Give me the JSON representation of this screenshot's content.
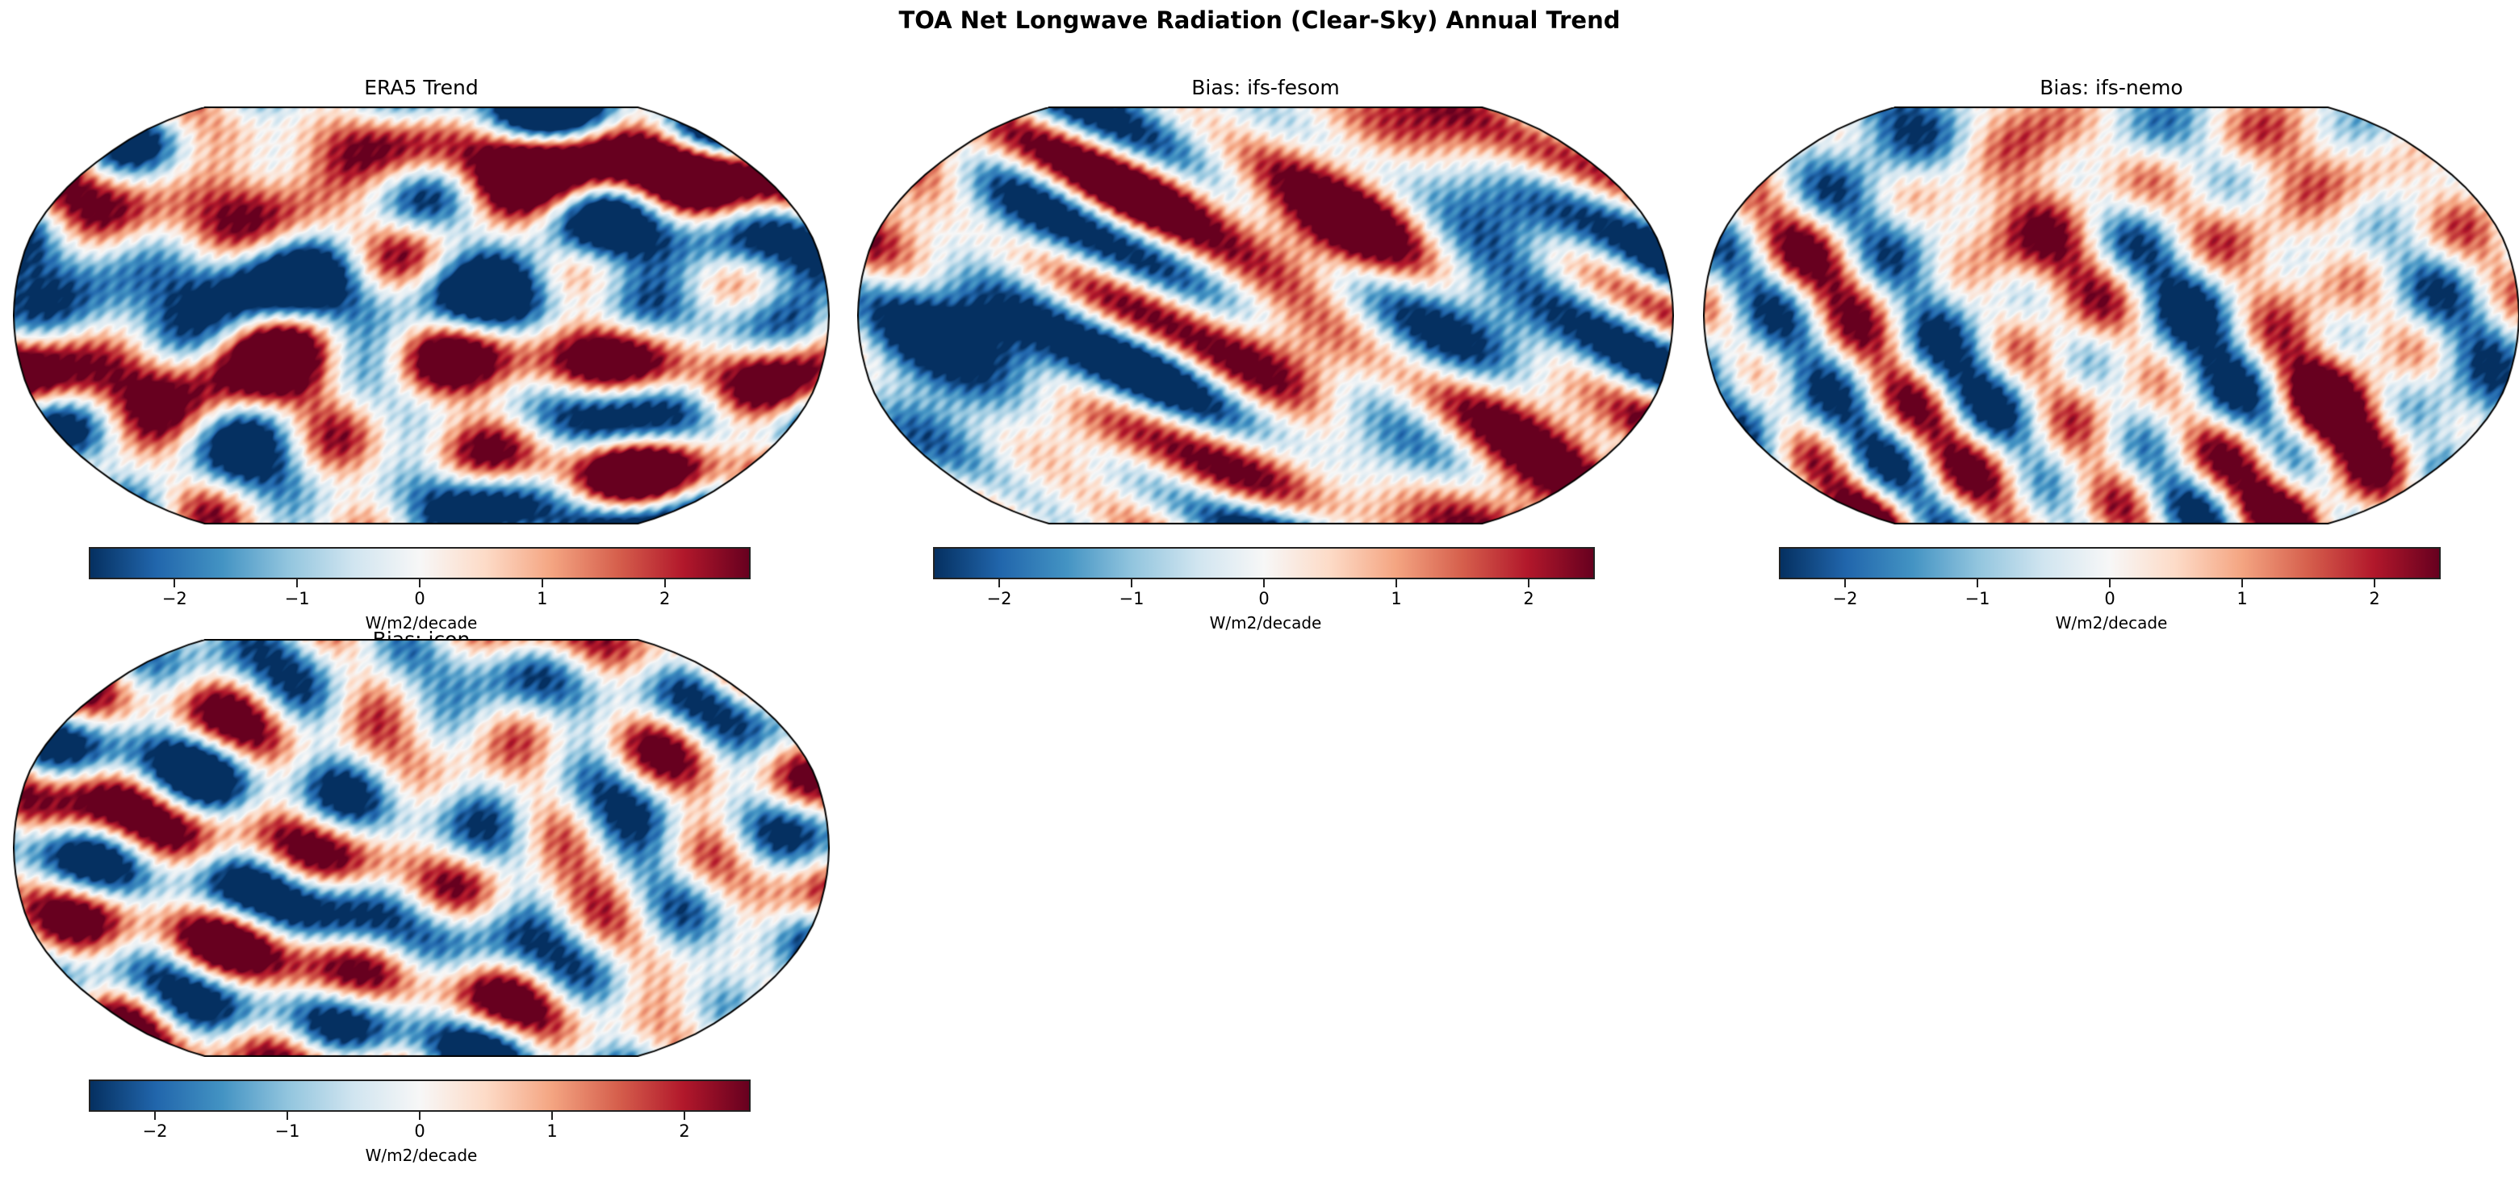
{
  "chart_data": {
    "type": "heatmap",
    "title": "TOA Net Longwave Radiation (Clear-Sky) Annual Trend",
    "projection": "Robinson",
    "colormap": "RdBu_r",
    "panels": [
      {
        "title": "ERA5 Trend",
        "colorbar": {
          "range": [
            -2.7,
            2.7
          ],
          "ticks": [
            -2,
            -1,
            0,
            1,
            2
          ],
          "tick_labels": [
            "−2",
            "−1",
            "0",
            "1",
            "2"
          ],
          "label": "W/m2/decade"
        }
      },
      {
        "title": "Bias: ifs-fesom",
        "colorbar": {
          "range": [
            -2.5,
            2.5
          ],
          "ticks": [
            -2,
            -1,
            0,
            1,
            2
          ],
          "tick_labels": [
            "−2",
            "−1",
            "0",
            "1",
            "2"
          ],
          "label": "W/m2/decade"
        }
      },
      {
        "title": "Bias: ifs-nemo",
        "colorbar": {
          "range": [
            -2.5,
            2.5
          ],
          "ticks": [
            -2,
            -1,
            0,
            1,
            2
          ],
          "tick_labels": [
            "−2",
            "−1",
            "0",
            "1",
            "2"
          ],
          "label": "W/m2/decade"
        }
      },
      {
        "title": "Bias: icon",
        "colorbar": {
          "range": [
            -2.5,
            2.5
          ],
          "ticks": [
            -2,
            -1,
            0,
            1,
            2
          ],
          "tick_labels": [
            "−2",
            "−1",
            "0",
            "1",
            "2"
          ],
          "label": "W/m2/decade"
        }
      }
    ]
  }
}
